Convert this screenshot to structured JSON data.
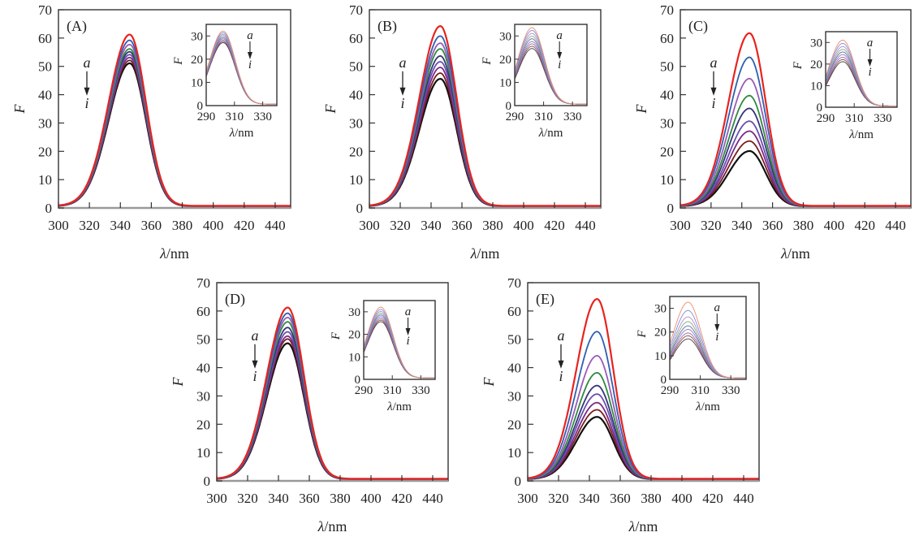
{
  "chart_data": [
    {
      "type": "line",
      "panel_label": "(A)",
      "xlabel_symbol": "λ",
      "xlabel_unit": "/nm",
      "ylabel": "F",
      "xlim": [
        300,
        450
      ],
      "ylim": [
        0,
        70
      ],
      "xticks": [
        300,
        320,
        340,
        360,
        380,
        400,
        420,
        440
      ],
      "yticks": [
        0,
        10,
        20,
        30,
        40,
        50,
        60,
        70
      ],
      "annotation": {
        "start": "a",
        "end": "i",
        "direction": "down"
      },
      "peak_wavelength": 346,
      "series": [
        {
          "name": "a",
          "peak": 60.5
        },
        {
          "name": "b",
          "peak": 58.5
        },
        {
          "name": "c",
          "peak": 57
        },
        {
          "name": "d",
          "peak": 55.5
        },
        {
          "name": "e",
          "peak": 54.5
        },
        {
          "name": "f",
          "peak": 53.5
        },
        {
          "name": "g",
          "peak": 52.5
        },
        {
          "name": "h",
          "peak": 51.5
        },
        {
          "name": "i",
          "peak": 50.5
        }
      ],
      "inset": {
        "xlabel_symbol": "λ",
        "xlabel_unit": "/nm",
        "ylabel": "F",
        "xlim": [
          290,
          340
        ],
        "ylim": [
          0,
          35
        ],
        "xticks": [
          290,
          310,
          330
        ],
        "yticks": [
          0,
          10,
          20,
          30
        ],
        "peak_wavelength": 302,
        "annotation": {
          "start": "a",
          "end": "i",
          "direction": "down"
        },
        "series_peaks": [
          31.5,
          30.8,
          30.1,
          29.5,
          28.8,
          28.2,
          27.6,
          27.0,
          26.5
        ]
      }
    },
    {
      "type": "line",
      "panel_label": "(B)",
      "xlabel_symbol": "λ",
      "xlabel_unit": "/nm",
      "ylabel": "F",
      "xlim": [
        300,
        450
      ],
      "ylim": [
        0,
        70
      ],
      "xticks": [
        300,
        320,
        340,
        360,
        380,
        400,
        420,
        440
      ],
      "yticks": [
        0,
        10,
        20,
        30,
        40,
        50,
        60,
        70
      ],
      "annotation": {
        "start": "a",
        "end": "i",
        "direction": "down"
      },
      "peak_wavelength": 346,
      "series": [
        {
          "name": "a",
          "peak": 63.5
        },
        {
          "name": "b",
          "peak": 60
        },
        {
          "name": "c",
          "peak": 57.5
        },
        {
          "name": "d",
          "peak": 55.5
        },
        {
          "name": "e",
          "peak": 53
        },
        {
          "name": "f",
          "peak": 51
        },
        {
          "name": "g",
          "peak": 49
        },
        {
          "name": "h",
          "peak": 47
        },
        {
          "name": "i",
          "peak": 45
        }
      ],
      "inset": {
        "xlabel_symbol": "λ",
        "xlabel_unit": "/nm",
        "ylabel": "F",
        "xlim": [
          290,
          340
        ],
        "ylim": [
          0,
          35
        ],
        "xticks": [
          290,
          310,
          330
        ],
        "yticks": [
          0,
          10,
          20,
          30
        ],
        "peak_wavelength": 302,
        "annotation": {
          "start": "a",
          "end": "i",
          "direction": "down"
        },
        "series_peaks": [
          33,
          31.8,
          30.5,
          29.3,
          28.2,
          27.0,
          26.0,
          25.0,
          24.0
        ]
      }
    },
    {
      "type": "line",
      "panel_label": "(C)",
      "xlabel_symbol": "λ",
      "xlabel_unit": "/nm",
      "ylabel": "F",
      "xlim": [
        300,
        450
      ],
      "ylim": [
        0,
        70
      ],
      "xticks": [
        300,
        320,
        340,
        360,
        380,
        400,
        420,
        440
      ],
      "yticks": [
        0,
        10,
        20,
        30,
        40,
        50,
        60,
        70
      ],
      "annotation": {
        "start": "a",
        "end": "i",
        "direction": "down"
      },
      "peak_wavelength": 345,
      "series": [
        {
          "name": "a",
          "peak": 61
        },
        {
          "name": "b",
          "peak": 52.5
        },
        {
          "name": "c",
          "peak": 45
        },
        {
          "name": "d",
          "peak": 39
        },
        {
          "name": "e",
          "peak": 34.5
        },
        {
          "name": "f",
          "peak": 30
        },
        {
          "name": "g",
          "peak": 26.5
        },
        {
          "name": "h",
          "peak": 23
        },
        {
          "name": "i",
          "peak": 19.5
        }
      ],
      "inset": {
        "xlabel_symbol": "λ",
        "xlabel_unit": "/nm",
        "ylabel": "F",
        "xlim": [
          290,
          340
        ],
        "ylim": [
          0,
          35
        ],
        "xticks": [
          290,
          310,
          330
        ],
        "yticks": [
          0,
          10,
          20,
          30
        ],
        "peak_wavelength": 302,
        "annotation": {
          "start": "a",
          "end": "i",
          "direction": "down"
        },
        "series_peaks": [
          30.5,
          29.0,
          27.5,
          26.2,
          25.0,
          23.8,
          22.6,
          21.5,
          20.5
        ]
      }
    },
    {
      "type": "line",
      "panel_label": "(D)",
      "xlabel_symbol": "λ",
      "xlabel_unit": "/nm",
      "ylabel": "F",
      "xlim": [
        300,
        450
      ],
      "ylim": [
        0,
        70
      ],
      "xticks": [
        300,
        320,
        340,
        360,
        380,
        400,
        420,
        440
      ],
      "yticks": [
        0,
        10,
        20,
        30,
        40,
        50,
        60,
        70
      ],
      "annotation": {
        "start": "a",
        "end": "i",
        "direction": "down"
      },
      "peak_wavelength": 346,
      "series": [
        {
          "name": "a",
          "peak": 60.5
        },
        {
          "name": "b",
          "peak": 58.5
        },
        {
          "name": "c",
          "peak": 57
        },
        {
          "name": "d",
          "peak": 55.5
        },
        {
          "name": "e",
          "peak": 53.5
        },
        {
          "name": "f",
          "peak": 52
        },
        {
          "name": "g",
          "peak": 50.5
        },
        {
          "name": "h",
          "peak": 49.5
        },
        {
          "name": "i",
          "peak": 48
        }
      ],
      "inset": {
        "xlabel_symbol": "λ",
        "xlabel_unit": "/nm",
        "ylabel": "F",
        "xlim": [
          290,
          340
        ],
        "ylim": [
          0,
          35
        ],
        "xticks": [
          290,
          310,
          330
        ],
        "yticks": [
          0,
          10,
          20,
          30
        ],
        "peak_wavelength": 302,
        "annotation": {
          "start": "a",
          "end": "i",
          "direction": "down"
        },
        "series_peaks": [
          31.5,
          30.5,
          29.6,
          28.8,
          28.0,
          27.2,
          26.4,
          25.7,
          25.0
        ]
      }
    },
    {
      "type": "line",
      "panel_label": "(E)",
      "xlabel_symbol": "λ",
      "xlabel_unit": "/nm",
      "ylabel": "F",
      "xlim": [
        300,
        450
      ],
      "ylim": [
        0,
        70
      ],
      "xticks": [
        300,
        320,
        340,
        360,
        380,
        400,
        420,
        440
      ],
      "yticks": [
        0,
        10,
        20,
        30,
        40,
        50,
        60,
        70
      ],
      "annotation": {
        "start": "a",
        "end": "i",
        "direction": "down"
      },
      "peak_wavelength": 345,
      "series": [
        {
          "name": "a",
          "peak": 63.5
        },
        {
          "name": "b",
          "peak": 52
        },
        {
          "name": "c",
          "peak": 43.5
        },
        {
          "name": "d",
          "peak": 37.5
        },
        {
          "name": "e",
          "peak": 33
        },
        {
          "name": "f",
          "peak": 30
        },
        {
          "name": "g",
          "peak": 27
        },
        {
          "name": "h",
          "peak": 24.5
        },
        {
          "name": "i",
          "peak": 22
        }
      ],
      "inset": {
        "xlabel_symbol": "λ",
        "xlabel_unit": "/nm",
        "ylabel": "F",
        "xlim": [
          290,
          340
        ],
        "ylim": [
          0,
          35
        ],
        "xticks": [
          290,
          310,
          330
        ],
        "yticks": [
          0,
          10,
          20,
          30
        ],
        "peak_wavelength": 302,
        "annotation": {
          "start": "a",
          "end": "i",
          "direction": "down"
        },
        "series_peaks": [
          32,
          28.5,
          25.8,
          23.8,
          22.0,
          20.5,
          19.0,
          17.8,
          16.5
        ]
      }
    }
  ],
  "series_colors": [
    "#e8231f",
    "#2f5fb0",
    "#9a5ab8",
    "#2f8a3e",
    "#35347a",
    "#6a4fb0",
    "#7a2a8a",
    "#7a1e1e",
    "#111111"
  ],
  "inset_colors": [
    "#f08a6a",
    "#7a8fd8",
    "#b18ad0",
    "#7fae7f",
    "#6a6aa0",
    "#8a7ac8",
    "#9a6aa8",
    "#8a4a4a",
    "#444444"
  ]
}
